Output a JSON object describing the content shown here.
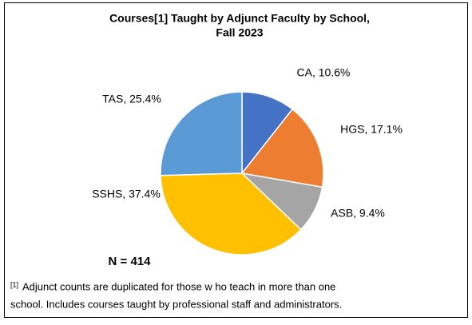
{
  "chart_data": {
    "type": "pie",
    "title": [
      "Courses[1] Taught by Adjunct Faculty by School,",
      "Fall 2023"
    ],
    "values": [
      10.6,
      17.1,
      9.4,
      37.4,
      25.4
    ],
    "value_labels": [
      "CA, 10.6%",
      "HGS, 17.1%",
      "ASB, 9.4%",
      "SSHS, 37.4%",
      "TAS, 25.4%"
    ],
    "colors": [
      "#4472c4",
      "#ed7d31",
      "#a5a5a5",
      "#ffc000",
      "#5b9bd5"
    ],
    "annotation": "N = 414",
    "footnote": {
      "marker": "[1]",
      "lines": [
        "Adjunct counts are duplicated for those w ho teach in more than one",
        "school. Includes courses taught by professional staff and administrators."
      ]
    }
  }
}
